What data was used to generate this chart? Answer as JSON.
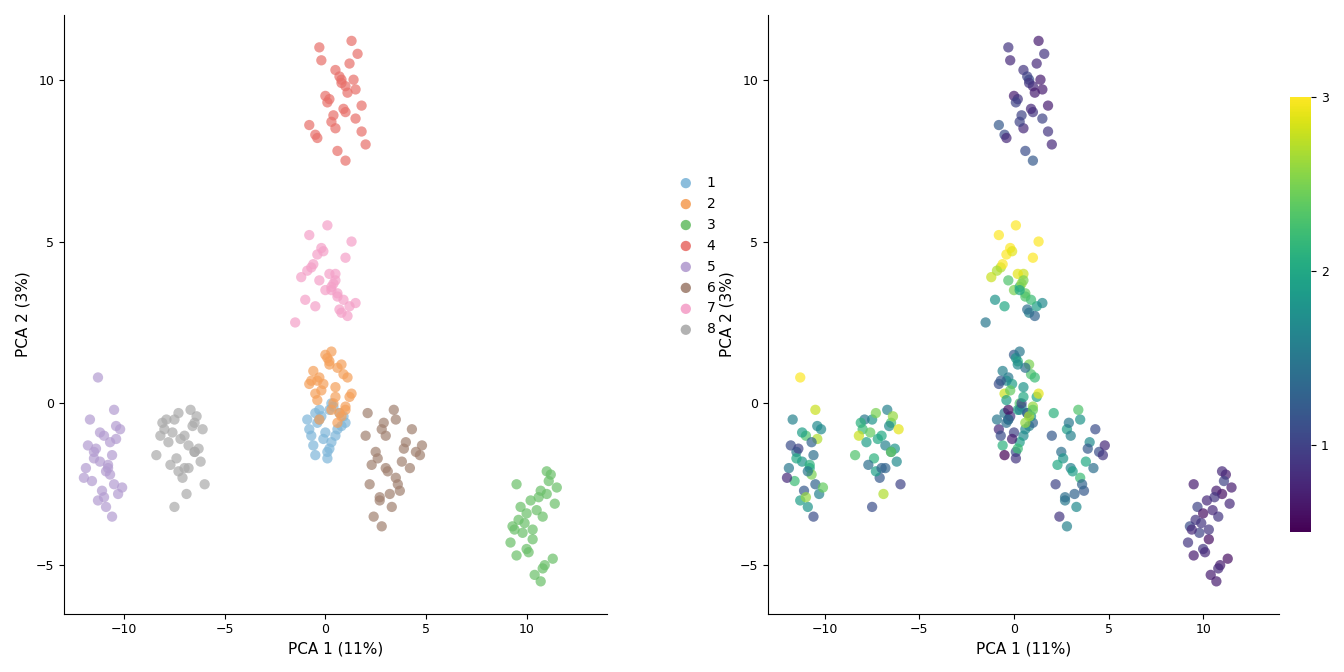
{
  "xlabel": "PCA 1 (11%)",
  "ylabel": "PCA 2 (3%)",
  "xlim": [
    -13,
    14
  ],
  "ylim": [
    -6.5,
    12
  ],
  "xticks": [
    -10,
    -5,
    0,
    5,
    10
  ],
  "yticks": [
    -5,
    0,
    5,
    10
  ],
  "group_colors": {
    "1": "#7eb6d9",
    "2": "#f5a05a",
    "3": "#6abf69",
    "4": "#e8706a",
    "5": "#b39cd0",
    "6": "#a08070",
    "7": "#f4a0c8",
    "8": "#aaaaaa"
  },
  "point_size": 55,
  "point_alpha": 0.7,
  "colormap": "viridis",
  "clusters": {
    "1": {
      "x": [
        -0.5,
        -0.3,
        0.2,
        -0.8,
        0.5,
        0.1,
        -0.4,
        0.3,
        -0.2,
        0.8,
        -0.6,
        0.0,
        0.4,
        -0.1,
        0.7,
        -0.9,
        0.2,
        -0.3,
        0.6,
        1.0,
        -0.5,
        0.3,
        -0.7,
        0.1,
        0.9
      ],
      "y": [
        -0.3,
        -0.5,
        -0.2,
        -0.8,
        -1.0,
        -1.5,
        -0.6,
        -1.2,
        -0.4,
        -0.7,
        -1.3,
        -0.9,
        -0.1,
        -1.1,
        -0.3,
        -0.5,
        -1.4,
        -0.2,
        -0.8,
        -0.6,
        -1.6,
        0.0,
        -1.0,
        -1.7,
        -0.4
      ]
    },
    "2": {
      "x": [
        0.5,
        0.8,
        -0.3,
        1.2,
        0.0,
        -0.5,
        0.3,
        0.9,
        -0.1,
        0.6,
        1.0,
        -0.4,
        0.2,
        0.7,
        -0.2,
        0.4,
        1.1,
        -0.6,
        0.8,
        -0.8,
        1.3,
        0.1,
        -0.3,
        0.5,
        0.2,
        -0.7,
        1.0,
        0.3,
        -0.4,
        0.6
      ],
      "y": [
        0.5,
        1.2,
        0.8,
        0.2,
        1.5,
        0.3,
        -0.2,
        0.9,
        0.6,
        1.1,
        -0.1,
        0.7,
        1.3,
        -0.3,
        0.4,
        0.0,
        0.8,
        1.0,
        -0.4,
        0.6,
        0.3,
        1.4,
        -0.5,
        0.2,
        1.2,
        0.7,
        -0.2,
        1.6,
        0.1,
        -0.6
      ]
    },
    "3": {
      "x": [
        9.5,
        10.2,
        10.8,
        11.0,
        9.8,
        10.5,
        11.2,
        10.0,
        9.3,
        10.7,
        11.4,
        10.3,
        9.6,
        11.1,
        10.9,
        9.4,
        10.6,
        11.3,
        9.7,
        10.4,
        10.1,
        9.9,
        11.5,
        10.8,
        9.2,
        10.0,
        11.0,
        9.5,
        10.3,
        10.7
      ],
      "y": [
        -2.5,
        -3.0,
        -3.5,
        -2.8,
        -4.0,
        -3.3,
        -2.2,
        -4.5,
        -3.8,
        -2.7,
        -3.1,
        -4.2,
        -3.6,
        -2.4,
        -5.0,
        -3.9,
        -2.9,
        -4.8,
        -3.2,
        -5.3,
        -4.6,
        -3.7,
        -2.6,
        -5.1,
        -4.3,
        -3.4,
        -2.1,
        -4.7,
        -3.9,
        -5.5
      ]
    },
    "4": {
      "x": [
        0.5,
        1.0,
        1.5,
        0.0,
        0.8,
        1.2,
        -0.3,
        1.8,
        0.3,
        1.0,
        0.5,
        -0.5,
        1.5,
        0.7,
        2.0,
        0.2,
        1.3,
        -0.8,
        0.9,
        1.6,
        0.4,
        1.1,
        -0.2,
        0.6,
        1.8,
        0.1,
        1.4,
        -0.4,
        0.8,
        1.0
      ],
      "y": [
        8.5,
        9.0,
        8.8,
        9.5,
        10.0,
        10.5,
        11.0,
        9.2,
        8.7,
        9.8,
        10.3,
        8.3,
        9.7,
        10.1,
        8.0,
        9.4,
        11.2,
        8.6,
        9.1,
        10.8,
        8.9,
        9.6,
        10.6,
        7.8,
        8.4,
        9.3,
        10.0,
        8.2,
        9.9,
        7.5
      ]
    },
    "5": {
      "x": [
        -11.5,
        -10.8,
        -11.2,
        -10.5,
        -11.0,
        -10.3,
        -11.8,
        -10.7,
        -11.3,
        -10.6,
        -11.6,
        -10.2,
        -11.1,
        -10.4,
        -11.9,
        -10.9,
        -11.4,
        -10.1,
        -11.7,
        -10.8,
        -12.0,
        -10.5,
        -11.3,
        -10.7,
        -11.0,
        -10.4,
        -11.5,
        -10.9,
        -11.2,
        -10.6
      ],
      "y": [
        -1.5,
        -2.0,
        -1.8,
        -2.5,
        -1.0,
        -2.8,
        -1.3,
        -2.2,
        -3.0,
        -1.6,
        -2.4,
        -0.8,
        -2.7,
        -1.1,
        -2.0,
        -3.2,
        -1.4,
        -2.6,
        -0.5,
        -1.9,
        -2.3,
        -0.2,
        0.8,
        -1.2,
        -2.9,
        -0.7,
        -1.7,
        -2.1,
        -0.9,
        -3.5
      ]
    },
    "6": {
      "x": [
        2.0,
        2.5,
        3.0,
        3.5,
        2.2,
        3.8,
        2.7,
        4.0,
        3.2,
        2.8,
        4.5,
        3.5,
        2.4,
        3.0,
        4.2,
        2.6,
        3.7,
        2.1,
        4.8,
        3.3,
        2.9,
        3.6,
        2.3,
        4.3,
        3.1,
        2.8,
        4.7,
        3.4,
        2.7,
        3.9
      ],
      "y": [
        -1.0,
        -1.5,
        -2.0,
        -0.5,
        -2.5,
        -1.8,
        -3.0,
        -1.2,
        -2.8,
        -0.8,
        -1.5,
        -2.3,
        -3.5,
        -1.0,
        -2.0,
        -1.7,
        -2.7,
        -0.3,
        -1.3,
        -3.2,
        -0.6,
        -2.5,
        -1.9,
        -0.8,
        -2.1,
        -3.8,
        -1.6,
        -0.2,
        -2.9,
        -1.4
      ]
    },
    "7": {
      "x": [
        -0.5,
        0.0,
        0.5,
        -1.0,
        1.0,
        -0.3,
        0.8,
        -0.7,
        0.3,
        1.2,
        -0.2,
        0.6,
        -1.5,
        0.2,
        0.9,
        -0.8,
        0.4,
        1.5,
        -0.4,
        0.7,
        -1.2,
        0.1,
        0.6,
        -0.6,
        1.1,
        -0.9,
        0.3,
        1.3,
        -0.1,
        0.5
      ],
      "y": [
        3.0,
        3.5,
        4.0,
        3.2,
        4.5,
        3.8,
        2.8,
        4.2,
        3.6,
        3.0,
        4.8,
        3.4,
        2.5,
        4.0,
        3.2,
        5.2,
        3.7,
        3.1,
        4.6,
        2.9,
        3.9,
        5.5,
        3.3,
        4.3,
        2.7,
        4.1,
        3.5,
        5.0,
        4.7,
        3.8
      ]
    },
    "8": {
      "x": [
        -7.5,
        -7.0,
        -6.5,
        -8.0,
        -6.8,
        -7.3,
        -6.2,
        -7.8,
        -6.5,
        -7.1,
        -8.2,
        -6.7,
        -7.4,
        -6.0,
        -7.6,
        -6.3,
        -7.9,
        -6.9,
        -7.2,
        -6.6,
        -8.4,
        -7.5,
        -6.4,
        -7.7,
        -6.1,
        -7.3,
        -6.8,
        -8.1,
        -7.0,
        -6.5
      ],
      "y": [
        -0.5,
        -1.0,
        -1.5,
        -0.8,
        -2.0,
        -0.3,
        -1.8,
        -1.2,
        -0.6,
        -2.3,
        -1.0,
        -0.2,
        -1.7,
        -2.5,
        -0.9,
        -1.4,
        -0.5,
        -2.8,
        -1.1,
        -0.7,
        -1.6,
        -3.2,
        -0.4,
        -1.9,
        -0.8,
        -2.1,
        -1.3,
        -0.6,
        -2.0,
        -1.5
      ]
    }
  },
  "size_factors": {
    "1": [
      1.5,
      1.2,
      2.0,
      0.8,
      1.7,
      1.1,
      1.4,
      1.9,
      0.9,
      1.6,
      2.1,
      1.0,
      1.8,
      0.7,
      1.3,
      1.5,
      2.2,
      0.6,
      1.7,
      1.3,
      0.5,
      2.3,
      1.1,
      0.9,
      1.8
    ],
    "2": [
      1.8,
      2.5,
      1.5,
      2.0,
      1.2,
      2.8,
      1.6,
      2.3,
      1.9,
      1.4,
      2.6,
      1.7,
      2.1,
      1.3,
      2.4,
      1.0,
      2.2,
      1.6,
      2.7,
      1.1,
      2.9,
      1.8,
      1.4,
      2.0,
      1.7,
      1.2,
      2.4,
      1.5,
      1.9,
      2.6
    ],
    "3": [
      0.7,
      0.8,
      0.9,
      0.6,
      1.0,
      0.8,
      0.7,
      0.9,
      1.1,
      0.7,
      0.8,
      0.6,
      0.9,
      1.0,
      0.7,
      0.8,
      0.9,
      0.6,
      1.0,
      0.7,
      0.8,
      0.9,
      0.7,
      0.8,
      0.9,
      0.6,
      0.8,
      0.7,
      0.9,
      0.7
    ],
    "4": [
      0.8,
      0.9,
      1.0,
      0.7,
      1.1,
      0.8,
      0.9,
      0.7,
      1.0,
      0.8,
      0.9,
      1.1,
      0.7,
      1.0,
      0.8,
      0.9,
      0.7,
      1.2,
      0.8,
      0.9,
      1.0,
      0.7,
      0.8,
      1.1,
      0.9,
      1.0,
      0.7,
      0.8,
      0.9,
      1.2
    ],
    "5": [
      1.5,
      2.0,
      1.8,
      1.3,
      2.3,
      1.6,
      1.1,
      2.5,
      1.9,
      1.4,
      2.2,
      1.7,
      1.2,
      2.7,
      1.5,
      1.8,
      1.0,
      2.4,
      1.6,
      2.1,
      0.8,
      2.8,
      3.0,
      1.3,
      2.6,
      1.7,
      2.0,
      1.5,
      1.9,
      1.1
    ],
    "6": [
      1.2,
      1.4,
      1.6,
      1.8,
      1.0,
      2.0,
      1.5,
      1.7,
      1.3,
      1.9,
      1.1,
      2.2,
      0.9,
      1.6,
      1.4,
      1.8,
      1.2,
      2.1,
      0.8,
      1.7,
      1.5,
      1.3,
      2.0,
      1.1,
      1.9,
      1.6,
      0.9,
      2.3,
      1.4,
      1.2
    ],
    "7": [
      2.0,
      2.5,
      2.8,
      1.8,
      3.0,
      2.3,
      1.6,
      2.7,
      2.1,
      1.9,
      3.2,
      2.4,
      1.5,
      2.9,
      2.2,
      3.5,
      2.6,
      1.7,
      3.1,
      1.4,
      2.8,
      3.8,
      2.3,
      3.0,
      1.3,
      2.7,
      2.0,
      3.4,
      2.9,
      2.5
    ],
    "8": [
      1.8,
      2.0,
      1.5,
      2.2,
      1.3,
      2.5,
      1.7,
      1.9,
      2.3,
      1.2,
      2.8,
      1.6,
      2.1,
      1.0,
      2.4,
      1.8,
      1.5,
      2.7,
      2.0,
      1.7,
      2.3,
      1.1,
      2.6,
      1.4,
      2.9,
      1.9,
      1.6,
      2.1,
      1.3,
      2.4
    ]
  },
  "vmin": 0.5,
  "vmax": 3.0
}
